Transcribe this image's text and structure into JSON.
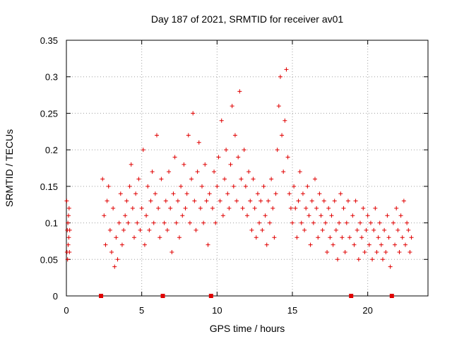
{
  "chart_data": {
    "type": "scatter",
    "title": "Day 187 of 2021, SRMTID for receiver av01",
    "xlabel": "GPS time / hours",
    "ylabel": "SRMTID / TECUs",
    "xlim": [
      0,
      24
    ],
    "ylim": [
      0,
      0.35
    ],
    "xticks": [
      0,
      5,
      10,
      15,
      20
    ],
    "yticks": [
      0,
      0.05,
      0.1,
      0.15,
      0.2,
      0.25,
      0.3,
      0.35
    ],
    "xtick_labels": [
      "0",
      "5",
      "10",
      "15",
      "20"
    ],
    "ytick_labels": [
      "0",
      "0.05",
      "0.1",
      "0.15",
      "0.2",
      "0.25",
      "0.3",
      "0.35"
    ],
    "grid": true,
    "marker": "plus",
    "color": "#e00000",
    "gap_markers_x": [
      2.3,
      6.4,
      9.6,
      18.9,
      21.6
    ],
    "series": [
      {
        "name": "SRMTID",
        "x": [
          0.02,
          0.04,
          0.06,
          0.08,
          0.1,
          0.12,
          0.14,
          0.16,
          0.18,
          0.2,
          0.22,
          2.4,
          2.5,
          2.6,
          2.7,
          2.8,
          2.9,
          3.0,
          3.1,
          3.2,
          3.3,
          3.4,
          3.5,
          3.6,
          3.7,
          3.8,
          3.9,
          4.0,
          4.1,
          4.2,
          4.3,
          4.4,
          4.5,
          4.6,
          4.7,
          4.8,
          4.9,
          5.0,
          5.1,
          5.2,
          5.3,
          5.4,
          5.5,
          5.6,
          5.7,
          5.8,
          5.9,
          6.0,
          6.1,
          6.2,
          6.3,
          6.5,
          6.6,
          6.7,
          6.8,
          6.9,
          7.0,
          7.1,
          7.2,
          7.3,
          7.4,
          7.5,
          7.6,
          7.7,
          7.8,
          7.9,
          8.0,
          8.1,
          8.2,
          8.3,
          8.4,
          8.5,
          8.6,
          8.7,
          8.8,
          8.9,
          9.0,
          9.1,
          9.2,
          9.3,
          9.4,
          9.5,
          9.7,
          9.8,
          9.9,
          10.0,
          10.1,
          10.2,
          10.3,
          10.4,
          10.5,
          10.6,
          10.7,
          10.8,
          10.9,
          11.0,
          11.1,
          11.2,
          11.3,
          11.4,
          11.5,
          11.6,
          11.7,
          11.8,
          11.9,
          12.0,
          12.1,
          12.2,
          12.3,
          12.4,
          12.5,
          12.6,
          12.7,
          12.8,
          12.9,
          13.0,
          13.1,
          13.2,
          13.3,
          13.4,
          13.5,
          13.6,
          13.7,
          13.8,
          13.9,
          14.0,
          14.1,
          14.2,
          14.3,
          14.4,
          14.5,
          14.6,
          14.7,
          14.8,
          14.9,
          15.0,
          15.1,
          15.2,
          15.3,
          15.4,
          15.5,
          15.6,
          15.7,
          15.8,
          15.9,
          16.0,
          16.1,
          16.2,
          16.3,
          16.4,
          16.5,
          16.6,
          16.7,
          16.8,
          16.9,
          17.0,
          17.1,
          17.2,
          17.3,
          17.4,
          17.5,
          17.6,
          17.7,
          17.8,
          17.9,
          18.0,
          18.1,
          18.2,
          18.3,
          18.4,
          18.5,
          18.6,
          18.7,
          18.8,
          19.0,
          19.1,
          19.2,
          19.3,
          19.4,
          19.5,
          19.6,
          19.7,
          19.8,
          19.9,
          20.0,
          20.1,
          20.2,
          20.3,
          20.4,
          20.5,
          20.6,
          20.7,
          20.8,
          20.9,
          21.0,
          21.1,
          21.2,
          21.3,
          21.4,
          21.5,
          21.7,
          21.8,
          21.9,
          22.0,
          22.1,
          22.2,
          22.3,
          22.4,
          22.5,
          22.6,
          22.7,
          22.8,
          22.9
        ],
        "y": [
          0.13,
          0.06,
          0.09,
          0.05,
          0.1,
          0.07,
          0.11,
          0.08,
          0.12,
          0.06,
          0.09,
          0.16,
          0.11,
          0.07,
          0.13,
          0.15,
          0.09,
          0.06,
          0.12,
          0.04,
          0.08,
          0.05,
          0.1,
          0.14,
          0.07,
          0.09,
          0.11,
          0.13,
          0.1,
          0.15,
          0.18,
          0.12,
          0.08,
          0.14,
          0.1,
          0.16,
          0.09,
          0.12,
          0.2,
          0.07,
          0.11,
          0.15,
          0.09,
          0.13,
          0.17,
          0.1,
          0.14,
          0.22,
          0.12,
          0.08,
          0.16,
          0.1,
          0.13,
          0.09,
          0.17,
          0.12,
          0.06,
          0.14,
          0.19,
          0.1,
          0.13,
          0.08,
          0.15,
          0.11,
          0.18,
          0.12,
          0.14,
          0.22,
          0.1,
          0.16,
          0.25,
          0.13,
          0.09,
          0.17,
          0.21,
          0.12,
          0.15,
          0.1,
          0.18,
          0.13,
          0.07,
          0.14,
          0.12,
          0.17,
          0.1,
          0.15,
          0.19,
          0.13,
          0.24,
          0.11,
          0.16,
          0.2,
          0.14,
          0.12,
          0.18,
          0.26,
          0.15,
          0.22,
          0.13,
          0.19,
          0.28,
          0.16,
          0.12,
          0.2,
          0.15,
          0.11,
          0.17,
          0.13,
          0.09,
          0.16,
          0.12,
          0.08,
          0.14,
          0.1,
          0.13,
          0.09,
          0.15,
          0.11,
          0.07,
          0.13,
          0.1,
          0.16,
          0.12,
          0.08,
          0.14,
          0.2,
          0.26,
          0.3,
          0.22,
          0.17,
          0.24,
          0.31,
          0.19,
          0.14,
          0.12,
          0.1,
          0.15,
          0.12,
          0.08,
          0.13,
          0.17,
          0.1,
          0.14,
          0.09,
          0.12,
          0.15,
          0.11,
          0.07,
          0.13,
          0.1,
          0.16,
          0.12,
          0.08,
          0.14,
          0.11,
          0.09,
          0.13,
          0.1,
          0.06,
          0.12,
          0.08,
          0.11,
          0.07,
          0.13,
          0.09,
          0.05,
          0.1,
          0.14,
          0.08,
          0.12,
          0.06,
          0.1,
          0.13,
          0.08,
          0.11,
          0.07,
          0.13,
          0.09,
          0.05,
          0.1,
          0.08,
          0.12,
          0.06,
          0.09,
          0.11,
          0.07,
          0.1,
          0.05,
          0.09,
          0.12,
          0.06,
          0.08,
          0.1,
          0.07,
          0.05,
          0.09,
          0.06,
          0.11,
          0.08,
          0.04,
          0.1,
          0.07,
          0.12,
          0.09,
          0.06,
          0.11,
          0.08,
          0.13,
          0.07,
          0.1,
          0.09,
          0.06,
          0.08
        ]
      }
    ]
  }
}
